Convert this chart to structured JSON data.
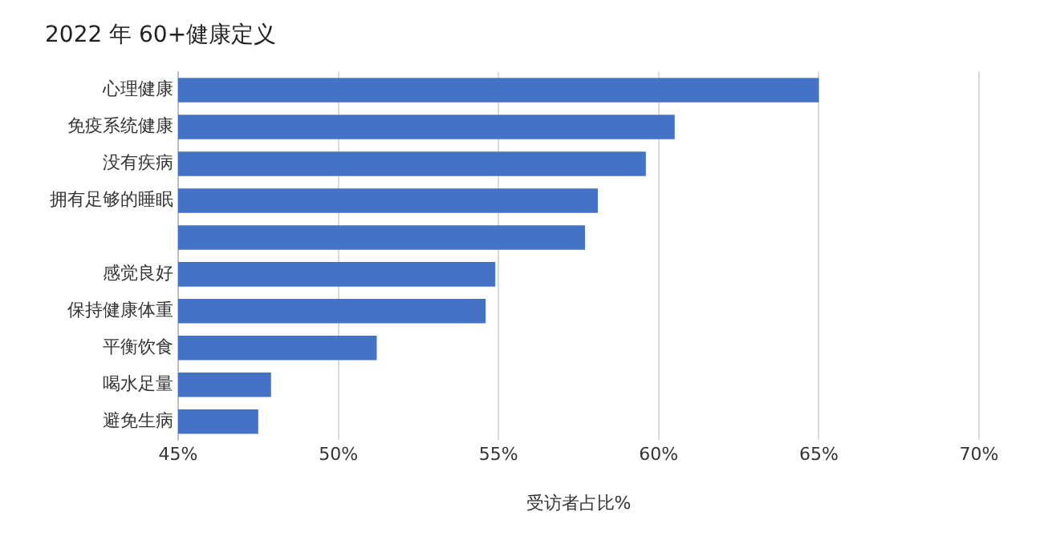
{
  "chart_data": {
    "type": "bar",
    "orientation": "horizontal",
    "title": "2022 年 60+健康定义",
    "xlabel": "受访者占比%",
    "categories": [
      "心理健康",
      "免疫系统健康",
      "没有疾病",
      "拥有足够的睡眠",
      null,
      "感觉良好",
      "保持健康体重",
      "平衡饮食",
      "喝水足量",
      "避免生病"
    ],
    "values": [
      65.0,
      60.5,
      59.6,
      58.1,
      57.7,
      54.9,
      54.6,
      51.2,
      47.9,
      47.5
    ],
    "color": "#4472c4",
    "xlim": [
      45,
      70
    ],
    "xticks": [
      {
        "value": 45,
        "label": "45%"
      },
      {
        "value": 50,
        "label": "50%"
      },
      {
        "value": 55,
        "label": "55%"
      },
      {
        "value": 60,
        "label": "60%"
      },
      {
        "value": 65,
        "label": "65%"
      },
      {
        "value": 70,
        "label": "70%"
      }
    ],
    "grid": "x",
    "legend": false
  }
}
